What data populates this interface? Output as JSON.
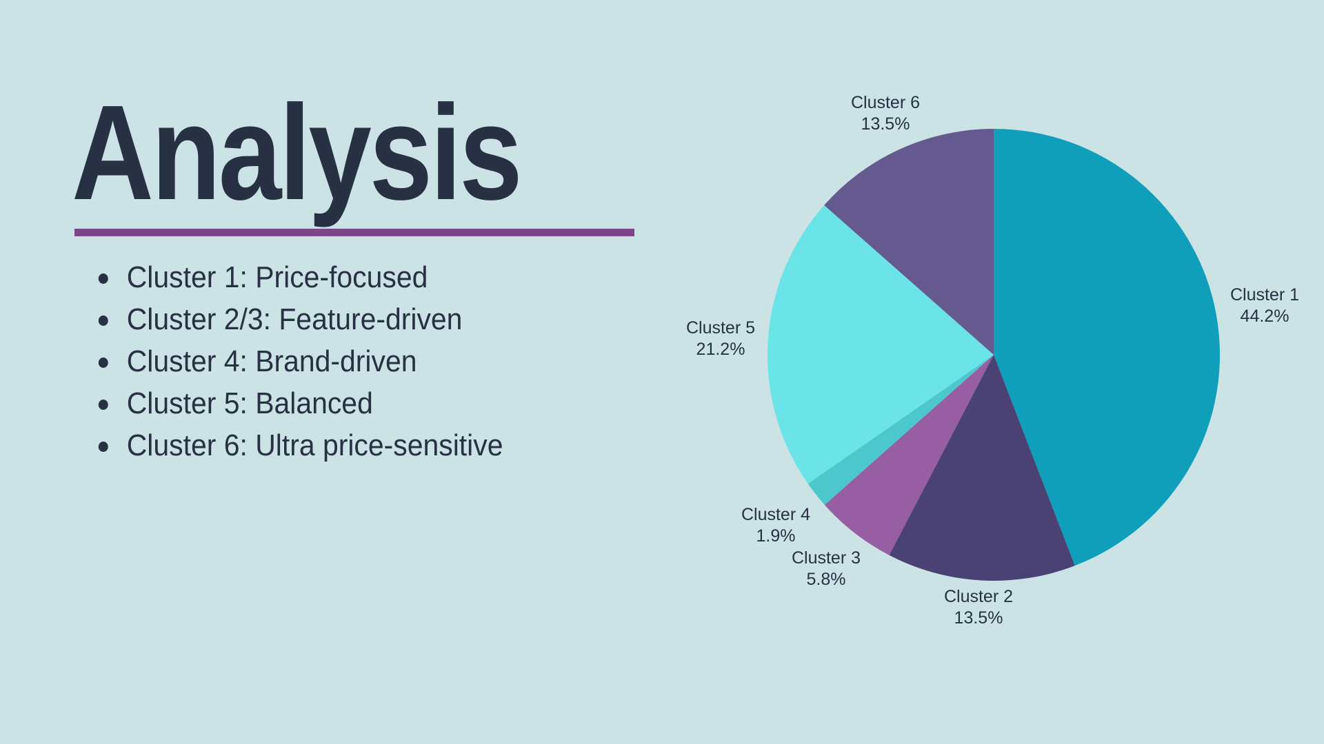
{
  "slide": {
    "title": "Analysis",
    "accent_color": "#7d4688",
    "background_color": "#cbe3e4",
    "text_color": "#283044",
    "bullets": [
      "Cluster 1: Price-focused",
      "Cluster 2/3: Feature-driven",
      "Cluster 4: Brand-driven",
      "Cluster 5: Balanced",
      "Cluster 6: Ultra price-sensitive"
    ]
  },
  "chart_data": {
    "type": "pie",
    "title": "",
    "categories": [
      "Cluster 1",
      "Cluster 2",
      "Cluster 3",
      "Cluster 4",
      "Cluster 5",
      "Cluster 6"
    ],
    "values": [
      44.2,
      13.5,
      5.8,
      1.9,
      21.2,
      13.5
    ],
    "value_labels": [
      "44.2%",
      "13.5%",
      "5.8%",
      "1.9%",
      "21.2%",
      "13.5%"
    ],
    "colors": [
      "#0f9fba",
      "#4a4175",
      "#985ea3",
      "#4cc8cc",
      "#6be4e8",
      "#645a8f"
    ],
    "start_angle": "12 o'clock, clockwise",
    "legend": "none (outside data labels)"
  }
}
